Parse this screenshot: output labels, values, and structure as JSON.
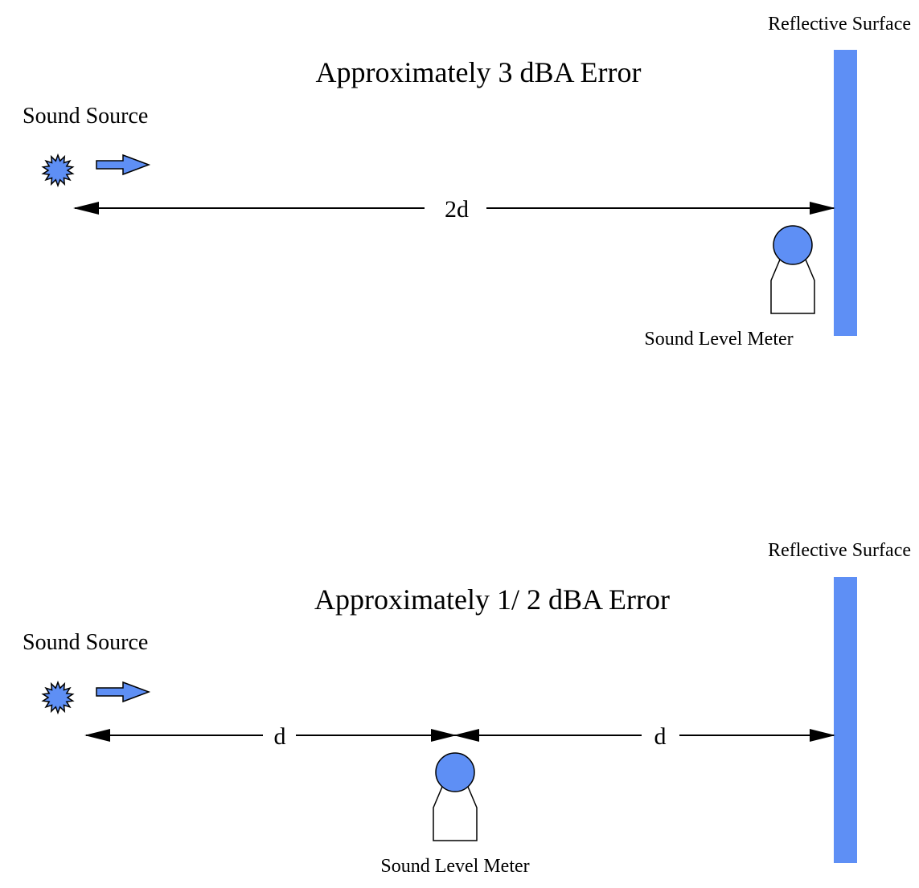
{
  "colors": {
    "accent": "#5e8ff5",
    "ink": "#000000",
    "background": "#ffffff"
  },
  "icons": {
    "source": "starburst-icon",
    "direction": "arrow-right-icon",
    "meter": "sound-level-meter-icon"
  },
  "panels": [
    {
      "title": "Approximately 3 dBA Error",
      "source_label": "Sound Source",
      "surface_label": "Reflective Surface",
      "meter_label": "Sound Level Meter",
      "distance_labels": [
        "2d"
      ]
    },
    {
      "title": "Approximately 1/ 2 dBA Error",
      "source_label": "Sound Source",
      "surface_label": "Reflective Surface",
      "meter_label": "Sound Level Meter",
      "distance_labels": [
        "d",
        "d"
      ]
    }
  ]
}
